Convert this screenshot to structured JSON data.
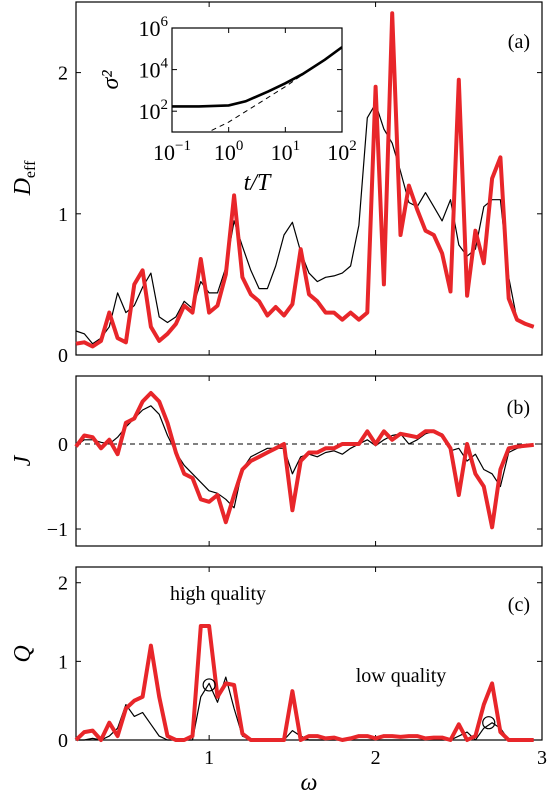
{
  "chart_data": [
    {
      "type": "line",
      "panel": "(a)",
      "ylabel_main": "D",
      "ylabel_sub": "eff",
      "xlim": [
        0.2,
        3.0
      ],
      "ylim": [
        0,
        2.5
      ],
      "yticks": [
        "0",
        "1",
        "2"
      ],
      "series": [
        {
          "color": "#000000",
          "x": [
            0.2,
            0.25,
            0.3,
            0.35,
            0.4,
            0.45,
            0.5,
            0.55,
            0.6,
            0.65,
            0.7,
            0.75,
            0.8,
            0.85,
            0.9,
            0.95,
            1.0,
            1.05,
            1.1,
            1.15,
            1.2,
            1.25,
            1.3,
            1.35,
            1.4,
            1.45,
            1.5,
            1.55,
            1.6,
            1.65,
            1.7,
            1.75,
            1.8,
            1.85,
            1.9,
            1.95,
            2.0,
            2.05,
            2.1,
            2.15,
            2.2,
            2.25,
            2.3,
            2.35,
            2.4,
            2.45,
            2.5,
            2.55,
            2.6,
            2.65,
            2.7,
            2.75,
            2.8,
            2.85,
            2.9,
            2.95
          ],
          "y": [
            0.17,
            0.15,
            0.08,
            0.12,
            0.2,
            0.44,
            0.3,
            0.35,
            0.48,
            0.58,
            0.27,
            0.23,
            0.27,
            0.38,
            0.33,
            0.52,
            0.44,
            0.44,
            0.62,
            0.95,
            0.77,
            0.6,
            0.47,
            0.47,
            0.63,
            0.85,
            0.94,
            0.73,
            0.58,
            0.52,
            0.55,
            0.56,
            0.58,
            0.63,
            0.92,
            1.68,
            1.78,
            1.6,
            1.5,
            1.3,
            1.08,
            1.05,
            1.15,
            1.05,
            0.95,
            1.1,
            0.78,
            0.7,
            0.75,
            1.05,
            1.1,
            1.1,
            0.55,
            0.25,
            0.22,
            0.2
          ]
        },
        {
          "color": "#e8262a",
          "x": [
            0.2,
            0.25,
            0.3,
            0.35,
            0.4,
            0.45,
            0.5,
            0.55,
            0.6,
            0.65,
            0.7,
            0.75,
            0.8,
            0.85,
            0.9,
            0.95,
            1.0,
            1.05,
            1.1,
            1.15,
            1.2,
            1.25,
            1.3,
            1.35,
            1.4,
            1.45,
            1.5,
            1.55,
            1.6,
            1.65,
            1.7,
            1.75,
            1.8,
            1.85,
            1.9,
            1.95,
            2.0,
            2.05,
            2.1,
            2.15,
            2.2,
            2.25,
            2.3,
            2.35,
            2.4,
            2.45,
            2.5,
            2.55,
            2.6,
            2.65,
            2.7,
            2.75,
            2.8,
            2.85,
            2.9,
            2.95
          ],
          "y": [
            0.08,
            0.09,
            0.06,
            0.1,
            0.3,
            0.12,
            0.09,
            0.5,
            0.6,
            0.2,
            0.1,
            0.15,
            0.22,
            0.35,
            0.3,
            0.68,
            0.3,
            0.35,
            0.57,
            1.13,
            0.55,
            0.43,
            0.38,
            0.28,
            0.34,
            0.28,
            0.36,
            0.75,
            0.43,
            0.38,
            0.3,
            0.3,
            0.25,
            0.3,
            0.25,
            0.3,
            1.9,
            0.5,
            2.42,
            0.85,
            1.2,
            1.03,
            0.88,
            0.85,
            0.72,
            0.45,
            1.95,
            0.42,
            0.88,
            0.65,
            1.25,
            1.4,
            0.4,
            0.25,
            0.22,
            0.2
          ]
        }
      ],
      "inset": {
        "xlabel": "t/T",
        "ylabel": "σ²",
        "xscale": "log",
        "yscale": "log",
        "xlim": [
          0.1,
          100
        ],
        "ylim": [
          10,
          1000000
        ],
        "xticks": [
          {
            "value": 0.1,
            "base": "10",
            "exp": "−1"
          },
          {
            "value": 1,
            "base": "10",
            "exp": "0"
          },
          {
            "value": 10,
            "base": "10",
            "exp": "1"
          },
          {
            "value": 100,
            "base": "10",
            "exp": "2"
          }
        ],
        "yticks": [
          {
            "value": 100,
            "base": "10",
            "exp": "2"
          },
          {
            "value": 10000,
            "base": "10",
            "exp": "4"
          },
          {
            "value": 1000000,
            "base": "10",
            "exp": "6"
          }
        ],
        "series": [
          {
            "style": "solid",
            "x": [
              0.1,
              0.3,
              1,
              2,
              5,
              10,
              20,
              50,
              100
            ],
            "y": [
              170,
              170,
              190,
              300,
              900,
              2200,
              6000,
              30000,
              120000
            ]
          },
          {
            "style": "dashed",
            "x": [
              0.5,
              1,
              10,
              100
            ],
            "y": [
              12,
              30,
              1500,
              120000
            ]
          }
        ]
      }
    },
    {
      "type": "line",
      "panel": "(b)",
      "ylabel": "J",
      "xlim": [
        0.2,
        3.0
      ],
      "ylim": [
        -1.2,
        0.8
      ],
      "yticks": [
        "−1",
        "0"
      ],
      "zero_line": "dashed",
      "series": [
        {
          "color": "#000000",
          "x": [
            0.2,
            0.25,
            0.3,
            0.35,
            0.4,
            0.45,
            0.5,
            0.55,
            0.6,
            0.65,
            0.7,
            0.75,
            0.8,
            0.85,
            0.9,
            0.95,
            1.0,
            1.05,
            1.1,
            1.15,
            1.2,
            1.25,
            1.3,
            1.35,
            1.4,
            1.45,
            1.5,
            1.55,
            1.6,
            1.65,
            1.7,
            1.75,
            1.8,
            1.85,
            1.9,
            1.95,
            2.0,
            2.05,
            2.1,
            2.15,
            2.2,
            2.25,
            2.3,
            2.35,
            2.4,
            2.45,
            2.5,
            2.55,
            2.6,
            2.65,
            2.7,
            2.75,
            2.8,
            2.85,
            2.9,
            2.95
          ],
          "y": [
            -0.02,
            0.05,
            0.05,
            0.02,
            0.0,
            0.08,
            0.2,
            0.3,
            0.4,
            0.45,
            0.35,
            0.1,
            -0.1,
            -0.25,
            -0.35,
            -0.45,
            -0.55,
            -0.58,
            -0.65,
            -0.75,
            -0.3,
            -0.15,
            -0.1,
            -0.05,
            -0.05,
            -0.05,
            -0.35,
            -0.15,
            -0.12,
            -0.15,
            -0.1,
            -0.08,
            -0.12,
            -0.05,
            0.0,
            0.05,
            -0.02,
            0.05,
            0.1,
            0.12,
            0.0,
            0.05,
            0.12,
            0.15,
            0.12,
            -0.08,
            -0.05,
            -0.2,
            -0.12,
            -0.3,
            -0.35,
            -0.5,
            -0.1,
            -0.05,
            -0.03,
            -0.02
          ]
        },
        {
          "color": "#e8262a",
          "x": [
            0.2,
            0.25,
            0.3,
            0.35,
            0.4,
            0.45,
            0.5,
            0.55,
            0.6,
            0.65,
            0.7,
            0.75,
            0.8,
            0.85,
            0.9,
            0.95,
            1.0,
            1.05,
            1.1,
            1.15,
            1.2,
            1.25,
            1.3,
            1.35,
            1.4,
            1.45,
            1.5,
            1.55,
            1.6,
            1.65,
            1.7,
            1.75,
            1.8,
            1.85,
            1.9,
            1.95,
            2.0,
            2.05,
            2.1,
            2.15,
            2.2,
            2.25,
            2.3,
            2.35,
            2.4,
            2.45,
            2.5,
            2.55,
            2.6,
            2.65,
            2.7,
            2.75,
            2.8,
            2.85,
            2.9,
            2.95
          ],
          "y": [
            -0.03,
            0.1,
            0.08,
            -0.05,
            0.05,
            -0.12,
            0.25,
            0.3,
            0.5,
            0.6,
            0.5,
            0.25,
            -0.1,
            -0.35,
            -0.4,
            -0.65,
            -0.68,
            -0.6,
            -0.92,
            -0.6,
            -0.3,
            -0.2,
            -0.15,
            -0.1,
            -0.05,
            0.0,
            -0.78,
            -0.2,
            -0.1,
            -0.1,
            -0.05,
            -0.05,
            0.0,
            0.0,
            0.0,
            0.15,
            0.0,
            0.15,
            0.05,
            0.12,
            0.1,
            0.08,
            0.15,
            0.15,
            0.1,
            -0.05,
            -0.6,
            0.0,
            -0.35,
            -0.5,
            -0.98,
            -0.3,
            -0.05,
            -0.03,
            -0.02,
            -0.01
          ]
        }
      ]
    },
    {
      "type": "line",
      "panel": "(c)",
      "ylabel": "Q",
      "xlabel": "ω",
      "xlim": [
        0.2,
        3.0
      ],
      "ylim": [
        0,
        2.2
      ],
      "yticks": [
        "0",
        "1",
        "2"
      ],
      "xticks": [
        "1",
        "2",
        "3"
      ],
      "annotations": [
        "high quality",
        "low quality"
      ],
      "markers": [
        {
          "x": 1.0,
          "y": 0.7
        },
        {
          "x": 2.68,
          "y": 0.22
        }
      ],
      "series": [
        {
          "color": "#000000",
          "x": [
            0.2,
            0.25,
            0.3,
            0.35,
            0.4,
            0.45,
            0.5,
            0.55,
            0.6,
            0.65,
            0.7,
            0.75,
            0.8,
            0.85,
            0.9,
            0.95,
            1.0,
            1.05,
            1.1,
            1.15,
            1.2,
            1.25,
            1.3,
            1.35,
            1.4,
            1.45,
            1.5,
            1.55,
            1.6,
            1.65,
            1.7,
            1.75,
            1.8,
            1.85,
            1.9,
            1.95,
            2.0,
            2.05,
            2.1,
            2.15,
            2.2,
            2.25,
            2.3,
            2.35,
            2.4,
            2.45,
            2.5,
            2.55,
            2.6,
            2.65,
            2.7,
            2.75,
            2.8,
            2.85,
            2.9,
            2.95
          ],
          "y": [
            0.0,
            0.0,
            0.02,
            0.0,
            0.05,
            0.15,
            0.45,
            0.3,
            0.35,
            0.2,
            0.05,
            0.0,
            0.0,
            0.0,
            0.0,
            0.55,
            0.72,
            0.48,
            0.8,
            0.4,
            0.05,
            0.0,
            0.0,
            0.0,
            0.0,
            0.0,
            0.12,
            0.05,
            0.0,
            0.0,
            0.0,
            0.0,
            0.0,
            0.0,
            0.0,
            0.0,
            0.0,
            0.0,
            0.0,
            0.0,
            0.0,
            0.0,
            0.0,
            0.0,
            0.0,
            0.0,
            0.05,
            0.1,
            0.0,
            0.15,
            0.22,
            0.15,
            0.0,
            0.0,
            0.0,
            0.0
          ]
        },
        {
          "color": "#e8262a",
          "x": [
            0.2,
            0.25,
            0.3,
            0.35,
            0.4,
            0.45,
            0.5,
            0.55,
            0.6,
            0.65,
            0.7,
            0.75,
            0.8,
            0.85,
            0.9,
            0.95,
            1.0,
            1.05,
            1.1,
            1.15,
            1.2,
            1.25,
            1.3,
            1.35,
            1.4,
            1.45,
            1.5,
            1.55,
            1.6,
            1.65,
            1.7,
            1.75,
            1.8,
            1.85,
            1.9,
            1.95,
            2.0,
            2.05,
            2.1,
            2.15,
            2.2,
            2.25,
            2.3,
            2.35,
            2.4,
            2.45,
            2.5,
            2.55,
            2.6,
            2.65,
            2.7,
            2.75,
            2.8,
            2.85,
            2.9,
            2.95
          ],
          "y": [
            0.0,
            0.1,
            0.12,
            0.0,
            0.22,
            0.05,
            0.4,
            0.5,
            0.55,
            1.2,
            0.55,
            0.05,
            0.0,
            0.0,
            0.05,
            1.45,
            1.45,
            0.55,
            0.72,
            0.7,
            0.08,
            0.0,
            0.0,
            0.0,
            0.0,
            0.0,
            0.62,
            0.0,
            0.05,
            0.05,
            0.02,
            0.03,
            0.0,
            0.02,
            0.05,
            0.05,
            0.02,
            0.05,
            0.05,
            0.04,
            0.05,
            0.05,
            0.02,
            0.03,
            0.03,
            0.0,
            0.2,
            0.0,
            0.05,
            0.45,
            0.72,
            0.1,
            0.0,
            0.0,
            0.0,
            0.0
          ]
        }
      ]
    }
  ]
}
